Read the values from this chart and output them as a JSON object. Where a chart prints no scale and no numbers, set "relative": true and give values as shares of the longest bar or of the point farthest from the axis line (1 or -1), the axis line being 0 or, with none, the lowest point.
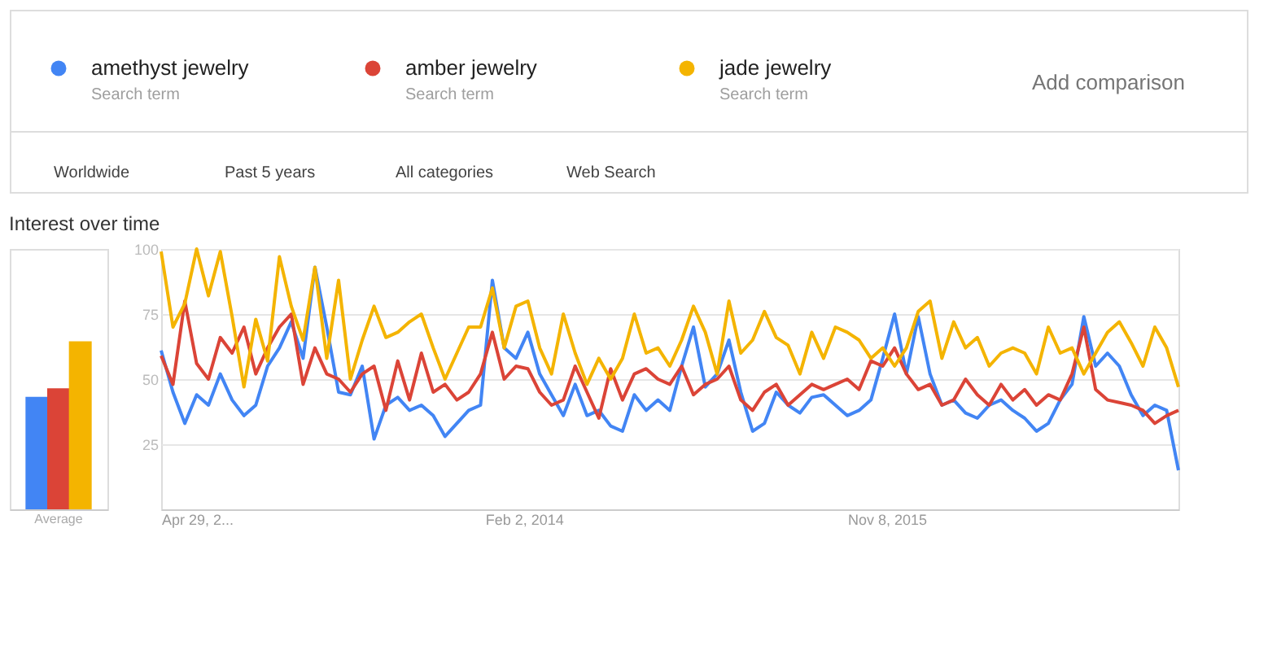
{
  "chart_data": [
    {
      "type": "bar",
      "relative": true,
      "categories": [
        "Average"
      ],
      "series": [
        {
          "color": "#4285f4",
          "values": [
            0.67
          ]
        },
        {
          "color": "#db4437",
          "values": [
            0.72
          ]
        },
        {
          "color": "#f4b400",
          "values": [
            1
          ]
        }
      ]
    },
    {
      "type": "line",
      "title": "Interest over time",
      "legend": "top",
      "grid": "y",
      "annotations": [
        "Search term",
        "Search term",
        "Search term",
        "Add comparison",
        "Worldwide",
        "Past 5 years",
        "All categories",
        "Web Search"
      ],
      "x": [
        "2012-04-29",
        "2012-05-20",
        "2012-06-10",
        "2012-07-01",
        "2012-07-22",
        "2012-08-12",
        "2012-09-02",
        "2012-09-23",
        "2012-10-14",
        "2012-11-04",
        "2012-11-25",
        "2012-12-16",
        "2013-01-06",
        "2013-01-27",
        "2013-02-17",
        "2013-03-10",
        "2013-03-31",
        "2013-04-21",
        "2013-05-12",
        "2013-06-02",
        "2013-06-23",
        "2013-07-14",
        "2013-08-04",
        "2013-08-25",
        "2013-09-15",
        "2013-10-06",
        "2013-10-27",
        "2013-11-17",
        "2013-12-08",
        "2013-12-29",
        "2014-01-19",
        "2014-02-09",
        "2014-03-02",
        "2014-03-23",
        "2014-04-13",
        "2014-05-04",
        "2014-05-25",
        "2014-06-15",
        "2014-07-06",
        "2014-07-27",
        "2014-08-17",
        "2014-09-07",
        "2014-09-28",
        "2014-10-19",
        "2014-11-09",
        "2014-11-30",
        "2014-12-21",
        "2015-01-11",
        "2015-02-01",
        "2015-02-22",
        "2015-03-15",
        "2015-04-05",
        "2015-04-26",
        "2015-05-17",
        "2015-06-07",
        "2015-06-28",
        "2015-07-19",
        "2015-08-09",
        "2015-08-30",
        "2015-09-20",
        "2015-10-11",
        "2015-11-01",
        "2015-11-22",
        "2015-12-13",
        "2016-01-03",
        "2016-01-24",
        "2016-02-14",
        "2016-03-06",
        "2016-03-27",
        "2016-04-17",
        "2016-05-08",
        "2016-05-29",
        "2016-06-19",
        "2016-07-10",
        "2016-07-31",
        "2016-08-21",
        "2016-09-11",
        "2016-10-02",
        "2016-10-23",
        "2016-11-13",
        "2016-12-04",
        "2016-12-25",
        "2017-01-15",
        "2017-02-05",
        "2017-02-26",
        "2017-03-19",
        "2017-04-09"
      ],
      "xlim": [
        "2012-04-29",
        "2017-04-09"
      ],
      "xticks": [
        {
          "value": "2012-04-29",
          "label": "Apr 29, 2..."
        },
        {
          "value": "2014-02-02",
          "label": "Feb 2, 2014"
        },
        {
          "value": "2015-11-08",
          "label": "Nov 8, 2015"
        }
      ],
      "ylim": [
        0,
        100
      ],
      "yticks": [
        25,
        50,
        75,
        100
      ],
      "series": [
        {
          "name": "amethyst jewelry",
          "color": "#4285f4",
          "values": [
            61,
            45,
            33,
            44,
            40,
            52,
            42,
            36,
            40,
            55,
            62,
            72,
            58,
            93,
            70,
            45,
            44,
            55,
            27,
            40,
            43,
            38,
            40,
            36,
            28,
            33,
            38,
            40,
            88,
            62,
            58,
            68,
            52,
            44,
            36,
            48,
            36,
            38,
            32,
            30,
            44,
            38,
            42,
            38,
            55,
            70,
            47,
            52,
            65,
            45,
            30,
            33,
            45,
            40,
            37,
            43,
            44,
            40,
            36,
            38,
            42,
            58,
            75,
            52,
            74,
            52,
            40,
            42,
            37,
            35,
            40,
            42,
            38,
            35,
            30,
            33,
            42,
            48,
            74,
            55,
            60,
            55,
            44,
            36,
            40,
            38,
            15
          ]
        },
        {
          "name": "amber jewelry",
          "color": "#db4437",
          "values": [
            59,
            48,
            80,
            56,
            50,
            66,
            60,
            70,
            52,
            62,
            70,
            75,
            48,
            62,
            52,
            50,
            45,
            52,
            55,
            38,
            57,
            42,
            60,
            45,
            48,
            42,
            45,
            52,
            68,
            50,
            55,
            54,
            45,
            40,
            42,
            55,
            45,
            35,
            54,
            42,
            52,
            54,
            50,
            48,
            55,
            44,
            48,
            50,
            55,
            42,
            38,
            45,
            48,
            40,
            44,
            48,
            46,
            48,
            50,
            46,
            57,
            55,
            62,
            52,
            46,
            48,
            40,
            42,
            50,
            44,
            40,
            48,
            42,
            46,
            40,
            44,
            42,
            52,
            70,
            46,
            42,
            41,
            40,
            38,
            33,
            36,
            38
          ]
        },
        {
          "name": "jade jewelry",
          "color": "#f4b400",
          "values": [
            99,
            70,
            79,
            100,
            82,
            99,
            74,
            47,
            73,
            57,
            97,
            78,
            65,
            93,
            58,
            88,
            50,
            65,
            78,
            66,
            68,
            72,
            75,
            62,
            50,
            60,
            70,
            70,
            85,
            62,
            78,
            80,
            62,
            52,
            75,
            60,
            48,
            58,
            50,
            58,
            75,
            60,
            62,
            55,
            65,
            78,
            68,
            52,
            80,
            60,
            65,
            76,
            66,
            63,
            52,
            68,
            58,
            70,
            68,
            65,
            58,
            62,
            55,
            62,
            76,
            80,
            58,
            72,
            62,
            66,
            55,
            60,
            62,
            60,
            52,
            70,
            60,
            62,
            52,
            60,
            68,
            72,
            64,
            55,
            70,
            62,
            47
          ]
        }
      ]
    }
  ]
}
